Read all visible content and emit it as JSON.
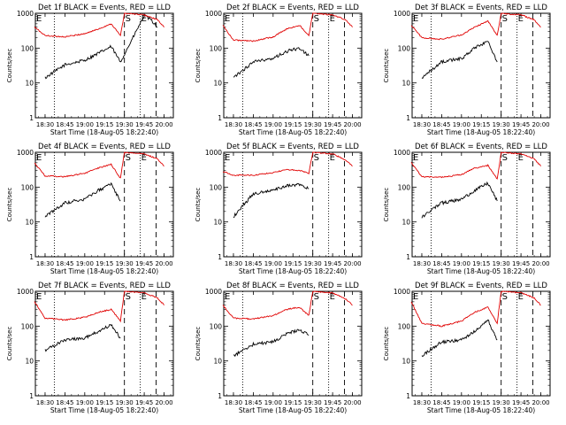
{
  "chart_data": [
    {
      "type": "line",
      "title": "Det 1f BLACK = Events, RED = LLD",
      "xlabel": "Start Time (18-Aug-05 18:22:40)",
      "ylabel": "Counts/sec",
      "yscale": "log",
      "ylim": [
        1,
        1000
      ],
      "xlim": [
        "18:22:40",
        "20:07:00"
      ],
      "x_ticks": [
        "18:30",
        "18:45",
        "19:00",
        "19:15",
        "19:30",
        "19:45",
        "20:00"
      ],
      "y_ticks": [
        "1",
        "10",
        "100",
        "1000"
      ],
      "markers": {
        "E_left": "E",
        "S": "S",
        "E_right": "E"
      },
      "series": [
        {
          "name": "Events",
          "color": "#000000",
          "x": [
            "18:30",
            "18:45",
            "19:00",
            "19:10",
            "19:20",
            "19:27",
            "19:45",
            "19:50",
            "19:55"
          ],
          "values": [
            14,
            33,
            45,
            70,
            110,
            40,
            850,
            650,
            400
          ]
        },
        {
          "name": "LLD",
          "color": "#e00000",
          "x": [
            "18:22",
            "18:30",
            "18:45",
            "19:00",
            "19:10",
            "19:20",
            "19:27",
            "19:30",
            "19:45",
            "19:55",
            "20:00"
          ],
          "values": [
            400,
            230,
            210,
            260,
            350,
            500,
            230,
            1000,
            900,
            650,
            400
          ]
        }
      ]
    },
    {
      "type": "line",
      "title": "Det 2f BLACK = Events, RED = LLD",
      "xlabel": "Start Time (18-Aug-05 18:22:40)",
      "ylabel": "Counts/sec",
      "yscale": "log",
      "ylim": [
        1,
        1000
      ],
      "xlim": [
        "18:22:40",
        "20:07:00"
      ],
      "x_ticks": [
        "18:30",
        "18:45",
        "19:00",
        "19:15",
        "19:30",
        "19:45",
        "20:00"
      ],
      "y_ticks": [
        "1",
        "10",
        "100",
        "1000"
      ],
      "markers": {
        "E_left": "E",
        "S": "S",
        "E_right": "E"
      },
      "series": [
        {
          "name": "Events",
          "color": "#000000",
          "x": [
            "18:30",
            "18:45",
            "19:00",
            "19:10",
            "19:20",
            "19:27"
          ],
          "values": [
            14,
            40,
            50,
            80,
            100,
            60
          ]
        },
        {
          "name": "LLD",
          "color": "#e00000",
          "x": [
            "18:22",
            "18:30",
            "18:45",
            "19:00",
            "19:10",
            "19:20",
            "19:27",
            "19:30",
            "19:45",
            "19:55",
            "20:00"
          ],
          "values": [
            450,
            170,
            160,
            210,
            350,
            450,
            230,
            1000,
            900,
            650,
            400
          ]
        }
      ]
    },
    {
      "type": "line",
      "title": "Det 3f BLACK = Events, RED = LLD",
      "xlabel": "Start Time (18-Aug-05 18:22:40)",
      "ylabel": "Counts/sec",
      "yscale": "log",
      "ylim": [
        1,
        1000
      ],
      "xlim": [
        "18:22:40",
        "20:07:00"
      ],
      "x_ticks": [
        "18:30",
        "18:45",
        "19:00",
        "19:15",
        "19:30",
        "19:45",
        "20:00"
      ],
      "y_ticks": [
        "1",
        "10",
        "100",
        "1000"
      ],
      "markers": {
        "E_left": "E",
        "S": "S",
        "E_right": "E"
      },
      "series": [
        {
          "name": "Events",
          "color": "#000000",
          "x": [
            "18:30",
            "18:45",
            "19:00",
            "19:10",
            "19:20",
            "19:27"
          ],
          "values": [
            14,
            40,
            50,
            100,
            160,
            40
          ]
        },
        {
          "name": "LLD",
          "color": "#e00000",
          "x": [
            "18:22",
            "18:30",
            "18:45",
            "19:00",
            "19:10",
            "19:20",
            "19:27",
            "19:30",
            "19:45",
            "19:55",
            "20:00"
          ],
          "values": [
            450,
            200,
            180,
            240,
            400,
            600,
            230,
            1000,
            900,
            650,
            400
          ]
        }
      ]
    },
    {
      "type": "line",
      "title": "Det 4f BLACK = Events, RED = LLD",
      "xlabel": "Start Time (18-Aug-05 18:22:40)",
      "ylabel": "Counts/sec",
      "yscale": "log",
      "ylim": [
        1,
        1000
      ],
      "xlim": [
        "18:22:40",
        "20:07:00"
      ],
      "x_ticks": [
        "18:30",
        "18:45",
        "19:00",
        "19:15",
        "19:30",
        "19:45",
        "20:00"
      ],
      "y_ticks": [
        "1",
        "10",
        "100",
        "1000"
      ],
      "markers": {
        "E_left": "E",
        "S": "S",
        "E_right": "E"
      },
      "series": [
        {
          "name": "Events",
          "color": "#000000",
          "x": [
            "18:30",
            "18:45",
            "19:00",
            "19:10",
            "19:20",
            "19:27"
          ],
          "values": [
            14,
            35,
            45,
            80,
            120,
            40
          ]
        },
        {
          "name": "LLD",
          "color": "#e00000",
          "x": [
            "18:22",
            "18:30",
            "18:45",
            "19:00",
            "19:10",
            "19:20",
            "19:27",
            "19:30",
            "19:45",
            "19:55",
            "20:00"
          ],
          "values": [
            500,
            210,
            200,
            250,
            350,
            450,
            180,
            1000,
            900,
            650,
            400
          ]
        }
      ]
    },
    {
      "type": "line",
      "title": "Det 5f BLACK = Events, RED = LLD",
      "xlabel": "Start Time (18-Aug-05 18:22:40)",
      "ylabel": "Counts/sec",
      "yscale": "log",
      "ylim": [
        1,
        1000
      ],
      "xlim": [
        "18:22:40",
        "20:07:00"
      ],
      "x_ticks": [
        "18:30",
        "18:45",
        "19:00",
        "19:15",
        "19:30",
        "19:45",
        "20:00"
      ],
      "y_ticks": [
        "1",
        "10",
        "100",
        "1000"
      ],
      "markers": {
        "E_left": "E",
        "S": "S",
        "E_right": "E"
      },
      "series": [
        {
          "name": "Events",
          "color": "#000000",
          "x": [
            "18:30",
            "18:45",
            "19:00",
            "19:10",
            "19:20",
            "19:27"
          ],
          "values": [
            14,
            65,
            80,
            110,
            120,
            90
          ]
        },
        {
          "name": "LLD",
          "color": "#e00000",
          "x": [
            "18:22",
            "18:30",
            "18:45",
            "19:00",
            "19:10",
            "19:20",
            "19:27",
            "19:30",
            "19:45",
            "19:55",
            "20:00"
          ],
          "values": [
            280,
            220,
            220,
            260,
            320,
            300,
            250,
            1000,
            900,
            600,
            400
          ]
        }
      ]
    },
    {
      "type": "line",
      "title": "Det 6f BLACK = Events, RED = LLD",
      "xlabel": "Start Time (18-Aug-05 18:22:40)",
      "ylabel": "Counts/sec",
      "yscale": "log",
      "ylim": [
        1,
        1000
      ],
      "xlim": [
        "18:22:40",
        "20:07:00"
      ],
      "x_ticks": [
        "18:30",
        "18:45",
        "19:00",
        "19:15",
        "19:30",
        "19:45",
        "20:00"
      ],
      "y_ticks": [
        "1",
        "10",
        "100",
        "1000"
      ],
      "markers": {
        "E_left": "E",
        "S": "S",
        "E_right": "E"
      },
      "series": [
        {
          "name": "Events",
          "color": "#000000",
          "x": [
            "18:30",
            "18:45",
            "19:00",
            "19:10",
            "19:20",
            "19:27"
          ],
          "values": [
            14,
            35,
            45,
            80,
            130,
            40
          ]
        },
        {
          "name": "LLD",
          "color": "#e00000",
          "x": [
            "18:22",
            "18:30",
            "18:45",
            "19:00",
            "19:10",
            "19:20",
            "19:27",
            "19:30",
            "19:45",
            "19:55",
            "20:00"
          ],
          "values": [
            500,
            200,
            190,
            230,
            350,
            420,
            170,
            1000,
            900,
            650,
            400
          ]
        }
      ]
    },
    {
      "type": "line",
      "title": "Det 7f BLACK = Events, RED = LLD",
      "xlabel": "Start Time (18-Aug-05 18:22:40)",
      "ylabel": "Counts/sec",
      "yscale": "log",
      "ylim": [
        1,
        1000
      ],
      "xlim": [
        "18:22:40",
        "20:07:00"
      ],
      "x_ticks": [
        "18:30",
        "18:45",
        "19:00",
        "19:15",
        "19:30",
        "19:45",
        "20:00"
      ],
      "y_ticks": [
        "1",
        "10",
        "100",
        "1000"
      ],
      "markers": {
        "E_left": "E",
        "S": "S",
        "E_right": "E"
      },
      "series": [
        {
          "name": "Events",
          "color": "#000000",
          "x": [
            "18:30",
            "18:45",
            "19:00",
            "19:10",
            "19:20",
            "19:27"
          ],
          "values": [
            20,
            40,
            45,
            70,
            110,
            45
          ]
        },
        {
          "name": "LLD",
          "color": "#e00000",
          "x": [
            "18:22",
            "18:30",
            "18:45",
            "19:00",
            "19:10",
            "19:20",
            "19:27",
            "19:30",
            "19:45",
            "19:55",
            "20:00"
          ],
          "values": [
            500,
            170,
            150,
            180,
            250,
            300,
            140,
            1000,
            900,
            650,
            400
          ]
        }
      ]
    },
    {
      "type": "line",
      "title": "Det 8f BLACK = Events, RED = LLD",
      "xlabel": "Start Time (18-Aug-05 18:22:40)",
      "ylabel": "Counts/sec",
      "yscale": "log",
      "ylim": [
        1,
        1000
      ],
      "xlim": [
        "18:22:40",
        "20:07:00"
      ],
      "x_ticks": [
        "18:30",
        "18:45",
        "19:00",
        "19:15",
        "19:30",
        "19:45",
        "20:00"
      ],
      "y_ticks": [
        "1",
        "10",
        "100",
        "1000"
      ],
      "markers": {
        "E_left": "E",
        "S": "S",
        "E_right": "E"
      },
      "series": [
        {
          "name": "Events",
          "color": "#000000",
          "x": [
            "18:30",
            "18:45",
            "19:00",
            "19:10",
            "19:20",
            "19:27"
          ],
          "values": [
            14,
            30,
            35,
            60,
            80,
            55
          ]
        },
        {
          "name": "LLD",
          "color": "#e00000",
          "x": [
            "18:22",
            "18:30",
            "18:45",
            "19:00",
            "19:10",
            "19:20",
            "19:27",
            "19:30",
            "19:45",
            "19:55",
            "20:00"
          ],
          "values": [
            400,
            170,
            160,
            200,
            300,
            350,
            200,
            1000,
            900,
            600,
            400
          ]
        }
      ]
    },
    {
      "type": "line",
      "title": "Det 9f BLACK = Events, RED = LLD",
      "xlabel": "Start Time (18-Aug-05 18:22:40)",
      "ylabel": "Counts/sec",
      "yscale": "log",
      "ylim": [
        1,
        1000
      ],
      "xlim": [
        "18:22:40",
        "20:07:00"
      ],
      "x_ticks": [
        "18:30",
        "18:45",
        "19:00",
        "19:15",
        "19:30",
        "19:45",
        "20:00"
      ],
      "y_ticks": [
        "1",
        "10",
        "100",
        "1000"
      ],
      "markers": {
        "E_left": "E",
        "S": "S",
        "E_right": "E"
      },
      "series": [
        {
          "name": "Events",
          "color": "#000000",
          "x": [
            "18:30",
            "18:45",
            "19:00",
            "19:10",
            "19:20",
            "19:27"
          ],
          "values": [
            14,
            35,
            40,
            70,
            150,
            40
          ]
        },
        {
          "name": "LLD",
          "color": "#e00000",
          "x": [
            "18:22",
            "18:30",
            "18:45",
            "19:00",
            "19:10",
            "19:20",
            "19:27",
            "19:30",
            "19:45",
            "19:55",
            "20:00"
          ],
          "values": [
            500,
            120,
            100,
            140,
            250,
            350,
            120,
            1000,
            900,
            650,
            400
          ]
        }
      ]
    }
  ]
}
